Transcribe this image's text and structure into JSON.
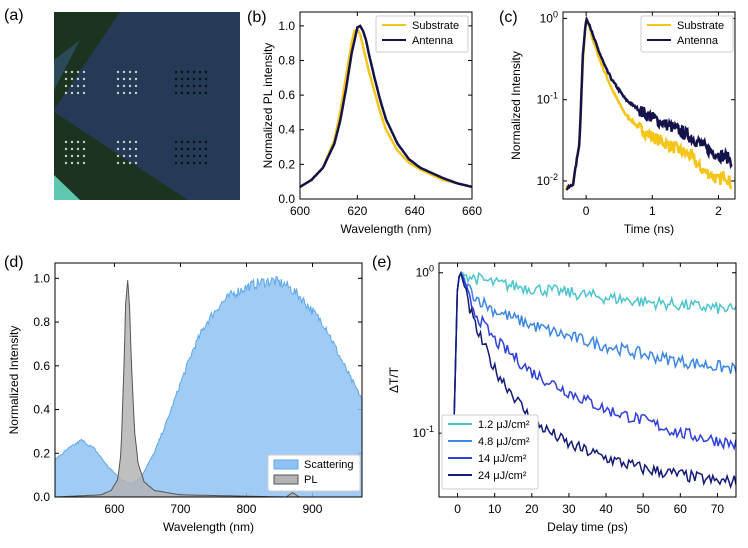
{
  "panel_labels": [
    "(a)",
    "(b)",
    "(c)",
    "(d)",
    "(e)"
  ],
  "colors": {
    "substrate": "#f5c518",
    "antenna": "#14124a",
    "scattering": "#8fc2f2",
    "scattering_line": "#5fa8ea",
    "pl": "#b4b4b4",
    "pl_line": "#555555",
    "fluence": [
      "#4fc4cc",
      "#3e86e0",
      "#2e40d8",
      "#141a78"
    ]
  },
  "chart_data": [
    {
      "panel": "(b)",
      "type": "line",
      "xlabel": "Wavelength (nm)",
      "ylabel": "Normalized PL intensity",
      "xlim": [
        600,
        660
      ],
      "ylim": [
        0.0,
        1.08
      ],
      "xticks": [
        "600",
        "620",
        "640",
        "660"
      ],
      "yticks": [
        "0.0",
        "0.2",
        "0.4",
        "0.6",
        "0.8",
        "1.0"
      ],
      "legend": "top-right",
      "series": [
        {
          "name": "Substrate",
          "x": [
            600,
            604,
            608,
            612,
            614,
            616,
            618,
            619,
            620,
            621,
            622,
            624,
            626,
            628,
            630,
            634,
            638,
            642,
            646,
            650,
            655,
            660
          ],
          "y": [
            0.07,
            0.11,
            0.18,
            0.34,
            0.5,
            0.7,
            0.9,
            0.97,
            0.98,
            0.95,
            0.88,
            0.74,
            0.62,
            0.5,
            0.4,
            0.28,
            0.21,
            0.17,
            0.14,
            0.11,
            0.09,
            0.07
          ]
        },
        {
          "name": "Antenna",
          "x": [
            600,
            604,
            608,
            612,
            614,
            616,
            618,
            620,
            621,
            622,
            623,
            624,
            626,
            628,
            630,
            634,
            638,
            642,
            646,
            650,
            655,
            660
          ],
          "y": [
            0.07,
            0.11,
            0.18,
            0.32,
            0.45,
            0.63,
            0.84,
            0.99,
            1.0,
            0.97,
            0.92,
            0.84,
            0.7,
            0.57,
            0.46,
            0.32,
            0.23,
            0.18,
            0.15,
            0.12,
            0.09,
            0.07
          ]
        }
      ]
    },
    {
      "panel": "(c)",
      "type": "line",
      "xlabel": "Time (ns)",
      "ylabel": "Normalized Intensity",
      "xlim": [
        -0.35,
        2.25
      ],
      "ylim": [
        0.006,
        1.2
      ],
      "yscale": "log",
      "xticks": [
        "0",
        "1",
        "2"
      ],
      "yticks": [
        "10^-2",
        "10^-1",
        "10^0"
      ],
      "legend": "top-right",
      "series": [
        {
          "name": "Substrate",
          "x": [
            -0.3,
            -0.2,
            -0.1,
            -0.05,
            0.0,
            0.05,
            0.1,
            0.2,
            0.3,
            0.4,
            0.5,
            0.6,
            0.8,
            1.0,
            1.2,
            1.4,
            1.5,
            1.6,
            1.7,
            1.8,
            1.9,
            2.0,
            2.1,
            2.2
          ],
          "y": [
            0.008,
            0.009,
            0.03,
            0.3,
            1.0,
            0.8,
            0.55,
            0.32,
            0.2,
            0.13,
            0.09,
            0.065,
            0.045,
            0.035,
            0.029,
            0.024,
            0.022,
            0.02,
            0.015,
            0.013,
            0.012,
            0.01,
            0.012,
            0.009
          ]
        },
        {
          "name": "Antenna",
          "x": [
            -0.3,
            -0.2,
            -0.1,
            -0.05,
            0.0,
            0.05,
            0.1,
            0.2,
            0.3,
            0.4,
            0.5,
            0.6,
            0.8,
            1.0,
            1.2,
            1.4,
            1.5,
            1.6,
            1.7,
            1.8,
            1.9,
            2.0,
            2.1,
            2.2
          ],
          "y": [
            0.008,
            0.009,
            0.03,
            0.35,
            1.0,
            0.85,
            0.62,
            0.38,
            0.24,
            0.17,
            0.13,
            0.1,
            0.075,
            0.06,
            0.05,
            0.042,
            0.038,
            0.034,
            0.03,
            0.026,
            0.023,
            0.021,
            0.02,
            0.018
          ]
        }
      ]
    },
    {
      "panel": "(d)",
      "type": "area",
      "xlabel": "Wavelength (nm)",
      "ylabel": "Normalized Intensity",
      "xlim": [
        510,
        975
      ],
      "ylim": [
        0.0,
        1.07
      ],
      "xticks": [
        "600",
        "700",
        "800",
        "900"
      ],
      "yticks": [
        "0.0",
        "0.2",
        "0.4",
        "0.6",
        "0.8",
        "1.0"
      ],
      "legend": "bottom-right",
      "series": [
        {
          "name": "Scattering",
          "x": [
            510,
            530,
            550,
            570,
            590,
            610,
            625,
            640,
            660,
            680,
            700,
            720,
            740,
            760,
            780,
            800,
            820,
            840,
            860,
            880,
            900,
            920,
            940,
            960,
            975
          ],
          "y": [
            0.17,
            0.22,
            0.26,
            0.22,
            0.14,
            0.08,
            0.06,
            0.09,
            0.2,
            0.35,
            0.52,
            0.68,
            0.8,
            0.88,
            0.93,
            0.96,
            0.98,
            0.99,
            0.97,
            0.92,
            0.85,
            0.78,
            0.65,
            0.53,
            0.45
          ]
        },
        {
          "name": "PL",
          "x": [
            510,
            580,
            595,
            605,
            610,
            614,
            617,
            620,
            623,
            626,
            630,
            636,
            645,
            660,
            700,
            860,
            870,
            880,
            975
          ],
          "y": [
            0.0,
            0.01,
            0.03,
            0.08,
            0.2,
            0.55,
            0.9,
            1.0,
            0.88,
            0.6,
            0.32,
            0.15,
            0.07,
            0.03,
            0.01,
            0.0,
            0.02,
            0.0,
            0.0
          ]
        }
      ]
    },
    {
      "panel": "(e)",
      "type": "line",
      "xlabel": "Delay time (ps)",
      "ylabel": "ΔT/T",
      "xlim": [
        -5,
        75
      ],
      "ylim": [
        0.04,
        1.15
      ],
      "yscale": "log",
      "xticks": [
        "0",
        "10",
        "20",
        "30",
        "40",
        "50",
        "60",
        "70"
      ],
      "yticks": [
        "10^-1",
        "10^0"
      ],
      "legend": "bottom-left",
      "series": [
        {
          "name": "1.2 μJ/cm²",
          "x": [
            -2,
            -1,
            0,
            1,
            3,
            5,
            10,
            20,
            30,
            40,
            50,
            60,
            70,
            75
          ],
          "y": [
            0.06,
            0.1,
            0.9,
            1.0,
            0.95,
            0.92,
            0.86,
            0.8,
            0.75,
            0.7,
            0.66,
            0.63,
            0.6,
            0.58
          ]
        },
        {
          "name": "4.8 μJ/cm²",
          "x": [
            -2,
            -1,
            0,
            1,
            3,
            5,
            10,
            20,
            30,
            40,
            50,
            60,
            70,
            75
          ],
          "y": [
            0.06,
            0.1,
            0.9,
            1.0,
            0.8,
            0.7,
            0.58,
            0.47,
            0.4,
            0.35,
            0.31,
            0.28,
            0.26,
            0.25
          ]
        },
        {
          "name": "14 μJ/cm²",
          "x": [
            -2,
            -1,
            0,
            1,
            3,
            5,
            10,
            20,
            30,
            40,
            50,
            60,
            70,
            75
          ],
          "y": [
            0.06,
            0.1,
            0.9,
            1.0,
            0.7,
            0.55,
            0.38,
            0.24,
            0.18,
            0.14,
            0.12,
            0.1,
            0.09,
            0.085
          ]
        },
        {
          "name": "24 μJ/cm²",
          "x": [
            -2,
            -1,
            0,
            1,
            3,
            5,
            10,
            20,
            30,
            40,
            50,
            60,
            70,
            75
          ],
          "y": [
            0.06,
            0.1,
            0.9,
            1.0,
            0.62,
            0.45,
            0.25,
            0.12,
            0.085,
            0.07,
            0.06,
            0.055,
            0.05,
            0.05
          ]
        }
      ]
    }
  ]
}
